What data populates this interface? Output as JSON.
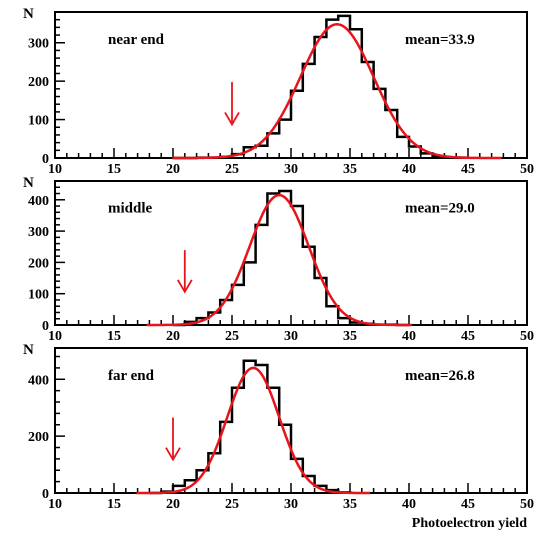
{
  "chart_data": [
    {
      "type": "histogram",
      "ylabel": "N",
      "label": "near end",
      "mean_label": "mean=33.9",
      "xlim": [
        10,
        50
      ],
      "ylim": [
        0,
        380
      ],
      "yticks": [
        0,
        100,
        200,
        300
      ],
      "xticks": [
        10,
        15,
        20,
        25,
        30,
        35,
        40,
        45,
        50
      ],
      "arrow_x": 25,
      "bins": [
        [
          20,
          21,
          0
        ],
        [
          21,
          22,
          0
        ],
        [
          22,
          23,
          1
        ],
        [
          23,
          24,
          1
        ],
        [
          24,
          25,
          3
        ],
        [
          25,
          26,
          10
        ],
        [
          26,
          27,
          28
        ],
        [
          27,
          28,
          32
        ],
        [
          28,
          29,
          64
        ],
        [
          29,
          30,
          100
        ],
        [
          30,
          31,
          175
        ],
        [
          31,
          32,
          245
        ],
        [
          32,
          33,
          315
        ],
        [
          33,
          34,
          360
        ],
        [
          34,
          35,
          370
        ],
        [
          35,
          36,
          335
        ],
        [
          36,
          37,
          250
        ],
        [
          37,
          38,
          180
        ],
        [
          38,
          39,
          125
        ],
        [
          39,
          40,
          55
        ],
        [
          40,
          41,
          30
        ],
        [
          41,
          42,
          12
        ],
        [
          42,
          43,
          5
        ],
        [
          43,
          44,
          2
        ],
        [
          44,
          45,
          1
        ]
      ],
      "fit": {
        "amplitude": 348,
        "mean": 33.9,
        "sigma": 3.1
      }
    },
    {
      "type": "histogram",
      "ylabel": "N",
      "label": "middle",
      "mean_label": "mean=29.0",
      "xlim": [
        10,
        50
      ],
      "ylim": [
        0,
        460
      ],
      "yticks": [
        0,
        100,
        200,
        300,
        400
      ],
      "xticks": [
        10,
        15,
        20,
        25,
        30,
        35,
        40,
        45,
        50
      ],
      "arrow_x": 21,
      "bins": [
        [
          20,
          21,
          0
        ],
        [
          21,
          22,
          10
        ],
        [
          22,
          23,
          22
        ],
        [
          23,
          24,
          40
        ],
        [
          24,
          25,
          80
        ],
        [
          25,
          26,
          128
        ],
        [
          26,
          27,
          200
        ],
        [
          27,
          28,
          320
        ],
        [
          28,
          29,
          420
        ],
        [
          29,
          30,
          428
        ],
        [
          30,
          31,
          380
        ],
        [
          31,
          32,
          250
        ],
        [
          32,
          33,
          150
        ],
        [
          33,
          34,
          60
        ],
        [
          34,
          35,
          22
        ],
        [
          35,
          36,
          8
        ],
        [
          36,
          37,
          4
        ],
        [
          37,
          38,
          1
        ],
        [
          38,
          39,
          1
        ],
        [
          39,
          40,
          0
        ]
      ],
      "fit": {
        "amplitude": 415,
        "mean": 29.0,
        "sigma": 2.5
      }
    },
    {
      "type": "histogram",
      "ylabel": "N",
      "label": "far end",
      "mean_label": "mean=26.8",
      "xlim": [
        10,
        50
      ],
      "ylim": [
        0,
        510
      ],
      "yticks": [
        0,
        200,
        400
      ],
      "xticks": [
        10,
        15,
        20,
        25,
        30,
        35,
        40,
        45,
        50
      ],
      "arrow_x": 20,
      "xlabel": "Photoelectron yield",
      "bins": [
        [
          18,
          19,
          0
        ],
        [
          19,
          20,
          5
        ],
        [
          20,
          21,
          25
        ],
        [
          21,
          22,
          45
        ],
        [
          22,
          23,
          80
        ],
        [
          23,
          24,
          140
        ],
        [
          24,
          25,
          250
        ],
        [
          25,
          26,
          370
        ],
        [
          26,
          27,
          465
        ],
        [
          27,
          28,
          450
        ],
        [
          28,
          29,
          370
        ],
        [
          29,
          30,
          240
        ],
        [
          30,
          31,
          120
        ],
        [
          31,
          32,
          60
        ],
        [
          32,
          33,
          25
        ],
        [
          33,
          34,
          10
        ],
        [
          34,
          35,
          2
        ]
      ],
      "fit": {
        "amplitude": 440,
        "mean": 26.8,
        "sigma": 2.2
      }
    }
  ],
  "colors": {
    "histogram": "#000000",
    "fit": "#e8141c",
    "arrow": "#e8141c",
    "frame": "#000000"
  }
}
